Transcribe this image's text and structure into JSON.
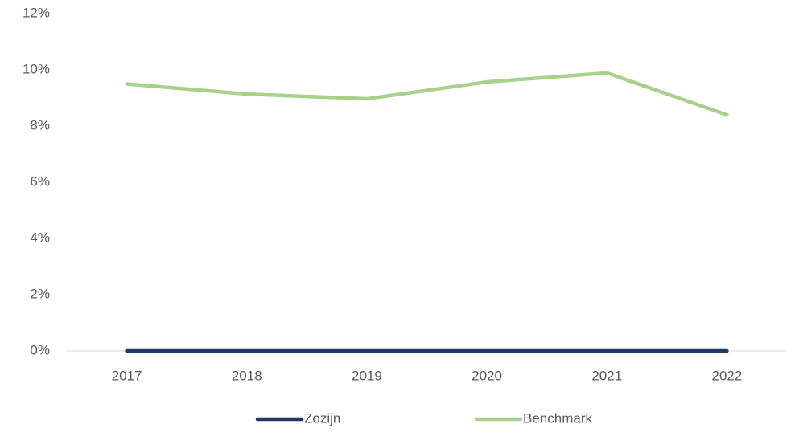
{
  "chart_data": {
    "type": "line",
    "categories": [
      "2017",
      "2018",
      "2019",
      "2020",
      "2021",
      "2022"
    ],
    "series": [
      {
        "name": "Zozijn",
        "color": "#1f3864",
        "values": [
          0,
          0,
          0,
          0,
          0,
          0
        ]
      },
      {
        "name": "Benchmark",
        "color": "#a9d18e",
        "values": [
          9.5,
          9.14,
          8.97,
          9.57,
          9.89,
          8.4
        ]
      }
    ],
    "ylim": [
      0,
      12
    ],
    "yticks": [
      {
        "value": 0,
        "label": "0%"
      },
      {
        "value": 2,
        "label": "2%"
      },
      {
        "value": 4,
        "label": "4%"
      },
      {
        "value": 6,
        "label": "6%"
      },
      {
        "value": 8,
        "label": "8%"
      },
      {
        "value": 10,
        "label": "10%"
      },
      {
        "value": 12,
        "label": "12%"
      }
    ],
    "grid": false
  }
}
